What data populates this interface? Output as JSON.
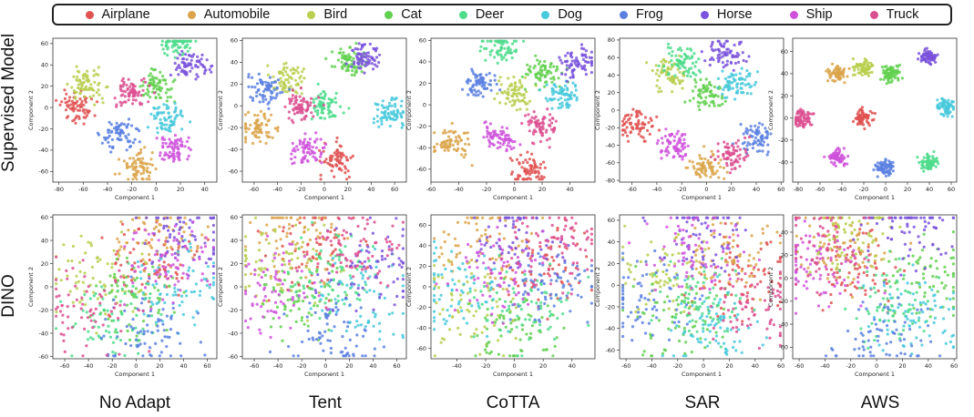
{
  "legend": {
    "items": [
      {
        "label": "Airplane",
        "color": "#e05252"
      },
      {
        "label": "Automobile",
        "color": "#dba44a"
      },
      {
        "label": "Bird",
        "color": "#b9cf4e"
      },
      {
        "label": "Cat",
        "color": "#61d04f"
      },
      {
        "label": "Deer",
        "color": "#4edc8c"
      },
      {
        "label": "Dog",
        "color": "#48c9dc"
      },
      {
        "label": "Frog",
        "color": "#5b80e0"
      },
      {
        "label": "Horse",
        "color": "#7a52dc"
      },
      {
        "label": "Ship",
        "color": "#cf52dc"
      },
      {
        "label": "Truck",
        "color": "#dc4f90"
      }
    ]
  },
  "rows": [
    "Supervised Model",
    "DINO"
  ],
  "columns": [
    "No Adapt",
    "Tent",
    "CoTTA",
    "SAR",
    "AWS"
  ],
  "chart_data": [
    {
      "type": "scatter",
      "row": "Supervised Model",
      "method": "No Adapt",
      "xlabel": "Component 1",
      "ylabel": "Component 2",
      "xlim": [
        -85,
        50
      ],
      "ylim": [
        -70,
        65
      ],
      "xticks": [
        -80,
        -60,
        -40,
        -20,
        0,
        20,
        40
      ],
      "yticks": [
        -60,
        -40,
        -20,
        0,
        20,
        40,
        60
      ],
      "centers": [
        [
          -65,
          0
        ],
        [
          -15,
          -55
        ],
        [
          -55,
          20
        ],
        [
          0,
          20
        ],
        [
          15,
          60
        ],
        [
          10,
          -10
        ],
        [
          -30,
          -25
        ],
        [
          30,
          40
        ],
        [
          15,
          -40
        ],
        [
          -20,
          15
        ]
      ]
    },
    {
      "type": "scatter",
      "row": "Supervised Model",
      "method": "Tent",
      "xlabel": "Component 1",
      "ylabel": "Component 2",
      "xlim": [
        -70,
        70
      ],
      "ylim": [
        -70,
        62
      ],
      "xticks": [
        -60,
        -40,
        -20,
        0,
        20,
        40,
        60
      ],
      "yticks": [
        -60,
        -40,
        -20,
        0,
        20,
        40,
        60
      ],
      "centers": [
        [
          10,
          -50
        ],
        [
          -55,
          -20
        ],
        [
          -30,
          25
        ],
        [
          20,
          40
        ],
        [
          0,
          0
        ],
        [
          55,
          -5
        ],
        [
          -50,
          15
        ],
        [
          35,
          45
        ],
        [
          -15,
          -40
        ],
        [
          -20,
          0
        ]
      ]
    },
    {
      "type": "scatter",
      "row": "Supervised Model",
      "method": "CoTTA",
      "xlabel": "Component 1",
      "ylabel": "Component 2",
      "xlim": [
        -60,
        58
      ],
      "ylim": [
        -72,
        62
      ],
      "xticks": [
        -60,
        -40,
        -20,
        0,
        20,
        40
      ],
      "yticks": [
        -60,
        -40,
        -20,
        0,
        20,
        40,
        60
      ],
      "centers": [
        [
          10,
          -60
        ],
        [
          -45,
          -35
        ],
        [
          0,
          10
        ],
        [
          20,
          30
        ],
        [
          -10,
          55
        ],
        [
          35,
          10
        ],
        [
          -25,
          20
        ],
        [
          45,
          40
        ],
        [
          -10,
          -30
        ],
        [
          20,
          -20
        ]
      ]
    },
    {
      "type": "scatter",
      "row": "Supervised Model",
      "method": "SAR",
      "xlabel": "Component 1",
      "ylabel": "Component 2",
      "xlim": [
        -70,
        62
      ],
      "ylim": [
        -82,
        82
      ],
      "xticks": [
        -60,
        -40,
        -20,
        0,
        20,
        40,
        60
      ],
      "yticks": [
        -80,
        -60,
        -40,
        -20,
        0,
        20,
        40,
        60,
        80
      ],
      "centers": [
        [
          -55,
          -15
        ],
        [
          0,
          -65
        ],
        [
          -30,
          40
        ],
        [
          0,
          20
        ],
        [
          -20,
          55
        ],
        [
          25,
          30
        ],
        [
          40,
          -30
        ],
        [
          15,
          65
        ],
        [
          -25,
          -40
        ],
        [
          20,
          -50
        ]
      ]
    },
    {
      "type": "scatter",
      "row": "Supervised Model",
      "method": "AWS",
      "xlabel": "Component 1",
      "ylabel": "Component 2",
      "xlim": [
        -85,
        65
      ],
      "ylim": [
        -58,
        72
      ],
      "xticks": [
        -80,
        -60,
        -40,
        -20,
        0,
        20,
        40,
        60
      ],
      "yticks": [
        -40,
        -20,
        0,
        20,
        40,
        60
      ],
      "centers": [
        [
          -20,
          0
        ],
        [
          -45,
          40
        ],
        [
          -20,
          45
        ],
        [
          5,
          40
        ],
        [
          40,
          -40
        ],
        [
          55,
          10
        ],
        [
          0,
          -45
        ],
        [
          40,
          55
        ],
        [
          -45,
          -35
        ],
        [
          -75,
          0
        ]
      ]
    },
    {
      "type": "scatter",
      "row": "DINO",
      "method": "No Adapt",
      "xlabel": "Component 1",
      "ylabel": "Component 2",
      "xlim": [
        -70,
        68
      ],
      "ylim": [
        -62,
        62
      ],
      "xticks": [
        -60,
        -40,
        -20,
        0,
        20,
        40,
        60
      ],
      "yticks": [
        -60,
        -40,
        -20,
        0,
        20,
        40,
        60
      ],
      "centers": [
        [
          10,
          20
        ],
        [
          20,
          40
        ],
        [
          -30,
          10
        ],
        [
          0,
          -10
        ],
        [
          -20,
          -30
        ],
        [
          40,
          0
        ],
        [
          10,
          -40
        ],
        [
          45,
          45
        ],
        [
          30,
          20
        ],
        [
          -40,
          -20
        ]
      ]
    },
    {
      "type": "scatter",
      "row": "DINO",
      "method": "Tent",
      "xlabel": "Component 1",
      "ylabel": "Component 2",
      "xlim": [
        -70,
        68
      ],
      "ylim": [
        -62,
        62
      ],
      "xticks": [
        -60,
        -40,
        -20,
        0,
        20,
        40,
        60
      ],
      "yticks": [
        -60,
        -40,
        -20,
        0,
        20,
        40,
        60
      ],
      "centers": [
        [
          -10,
          30
        ],
        [
          -25,
          45
        ],
        [
          -40,
          20
        ],
        [
          -20,
          -10
        ],
        [
          10,
          10
        ],
        [
          30,
          -10
        ],
        [
          10,
          -40
        ],
        [
          40,
          20
        ],
        [
          -40,
          0
        ],
        [
          20,
          30
        ]
      ]
    },
    {
      "type": "scatter",
      "row": "DINO",
      "method": "CoTTA",
      "xlabel": "Component 1",
      "ylabel": "Component 2",
      "xlim": [
        -58,
        56
      ],
      "ylim": [
        -70,
        70
      ],
      "xticks": [
        -40,
        -20,
        0,
        20,
        40
      ],
      "yticks": [
        -60,
        -40,
        -20,
        0,
        20,
        40,
        60
      ],
      "centers": [
        [
          20,
          20
        ],
        [
          -20,
          40
        ],
        [
          -30,
          -20
        ],
        [
          0,
          -40
        ],
        [
          10,
          -20
        ],
        [
          -40,
          0
        ],
        [
          30,
          0
        ],
        [
          0,
          50
        ],
        [
          -10,
          10
        ],
        [
          30,
          40
        ]
      ]
    },
    {
      "type": "scatter",
      "row": "DINO",
      "method": "SAR",
      "xlabel": "Component 1",
      "ylabel": "Component 2",
      "xlim": [
        -65,
        62
      ],
      "ylim": [
        -68,
        65
      ],
      "xticks": [
        -60,
        -40,
        -20,
        0,
        20,
        40,
        60
      ],
      "yticks": [
        -60,
        -40,
        -20,
        0,
        20,
        40,
        60
      ],
      "centers": [
        [
          30,
          10
        ],
        [
          20,
          30
        ],
        [
          -30,
          10
        ],
        [
          -20,
          -30
        ],
        [
          0,
          -10
        ],
        [
          10,
          -40
        ],
        [
          -40,
          -10
        ],
        [
          0,
          50
        ],
        [
          -10,
          30
        ],
        [
          40,
          -20
        ]
      ]
    },
    {
      "type": "scatter",
      "row": "DINO",
      "method": "AWS",
      "xlabel": "Component 1",
      "ylabel": "Component 2",
      "xlim": [
        -65,
        62
      ],
      "ylim": [
        -70,
        55
      ],
      "xticks": [
        -60,
        -40,
        -20,
        0,
        20,
        40,
        60
      ],
      "yticks": [
        -60,
        -40,
        -20,
        0,
        20,
        40
      ],
      "centers": [
        [
          -20,
          10
        ],
        [
          -25,
          30
        ],
        [
          -20,
          40
        ],
        [
          40,
          0
        ],
        [
          10,
          -20
        ],
        [
          30,
          -30
        ],
        [
          5,
          -50
        ],
        [
          25,
          45
        ],
        [
          -50,
          10
        ],
        [
          -40,
          30
        ]
      ]
    }
  ]
}
